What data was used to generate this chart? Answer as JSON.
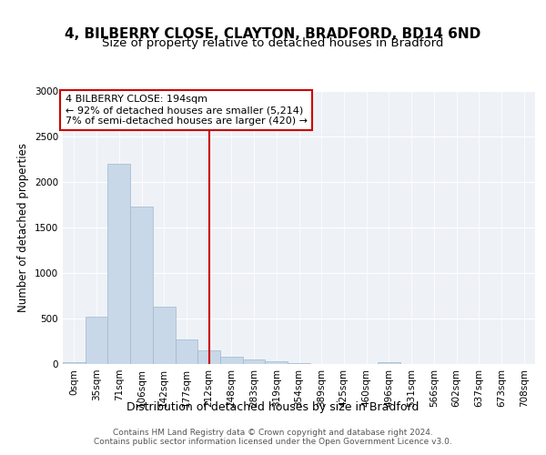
{
  "title1": "4, BILBERRY CLOSE, CLAYTON, BRADFORD, BD14 6ND",
  "title2": "Size of property relative to detached houses in Bradford",
  "xlabel": "Distribution of detached houses by size in Bradford",
  "ylabel": "Number of detached properties",
  "bin_labels": [
    "0sqm",
    "35sqm",
    "71sqm",
    "106sqm",
    "142sqm",
    "177sqm",
    "212sqm",
    "248sqm",
    "283sqm",
    "319sqm",
    "354sqm",
    "389sqm",
    "425sqm",
    "460sqm",
    "496sqm",
    "531sqm",
    "566sqm",
    "602sqm",
    "637sqm",
    "673sqm",
    "708sqm"
  ],
  "bar_values": [
    20,
    520,
    2200,
    1730,
    635,
    270,
    150,
    80,
    50,
    30,
    15,
    5,
    5,
    0,
    20,
    0,
    0,
    5,
    0,
    0,
    0
  ],
  "bar_color": "#c8d8e8",
  "bar_edge_color": "#a0b8cc",
  "property_line_x": 6.0,
  "property_line_color": "#cc0000",
  "annotation_text": "4 BILBERRY CLOSE: 194sqm\n← 92% of detached houses are smaller (5,214)\n7% of semi-detached houses are larger (420) →",
  "annotation_box_color": "#cc0000",
  "ylim": [
    0,
    3000
  ],
  "yticks": [
    0,
    500,
    1000,
    1500,
    2000,
    2500,
    3000
  ],
  "background_color": "#eef2f7",
  "grid_color": "#ffffff",
  "footer_text": "Contains HM Land Registry data © Crown copyright and database right 2024.\nContains public sector information licensed under the Open Government Licence v3.0.",
  "title1_fontsize": 11,
  "title2_fontsize": 9.5,
  "xlabel_fontsize": 9,
  "ylabel_fontsize": 8.5,
  "tick_fontsize": 7.5,
  "annotation_fontsize": 8,
  "footer_fontsize": 6.5
}
